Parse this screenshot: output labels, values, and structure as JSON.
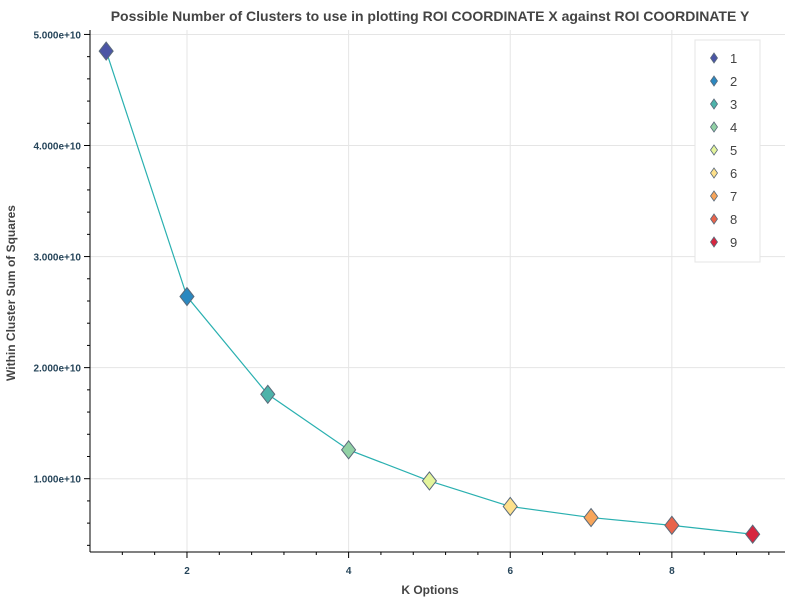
{
  "chart_data": {
    "type": "line",
    "title": "Possible Number of Clusters to use in plotting ROI COORDINATE X against ROI COORDINATE Y",
    "xlabel": "K Options",
    "ylabel": "Within Cluster Sum of Squares",
    "x": [
      1,
      2,
      3,
      4,
      5,
      6,
      7,
      8,
      9
    ],
    "series": [
      {
        "values": [
          48500000000,
          26400000000,
          17600000000,
          12600000000,
          9800000000,
          7500000000,
          6500000000,
          5800000000,
          5000000000
        ]
      }
    ],
    "point_colors": [
      "#4b55a5",
      "#2b88c0",
      "#4db3aa",
      "#92d1a5",
      "#e4f49c",
      "#fde08b",
      "#f7a55a",
      "#e8644b",
      "#d6263f"
    ],
    "line_color": "#2ab0b0",
    "xlim": [
      0.8,
      9.4
    ],
    "ylim": [
      3400000000,
      50400000000
    ],
    "x_ticks": [
      2,
      4,
      6,
      8
    ],
    "x_tick_labels": [
      "2",
      "4",
      "6",
      "8"
    ],
    "y_ticks": [
      10000000000,
      20000000000,
      30000000000,
      40000000000,
      50000000000
    ],
    "y_tick_labels": [
      "1.000e+10",
      "2.000e+10",
      "3.000e+10",
      "4.000e+10",
      "5.000e+10"
    ],
    "legend": {
      "placement": "top-right",
      "entries": [
        "1",
        "2",
        "3",
        "4",
        "5",
        "6",
        "7",
        "8",
        "9"
      ]
    },
    "grid": true
  }
}
